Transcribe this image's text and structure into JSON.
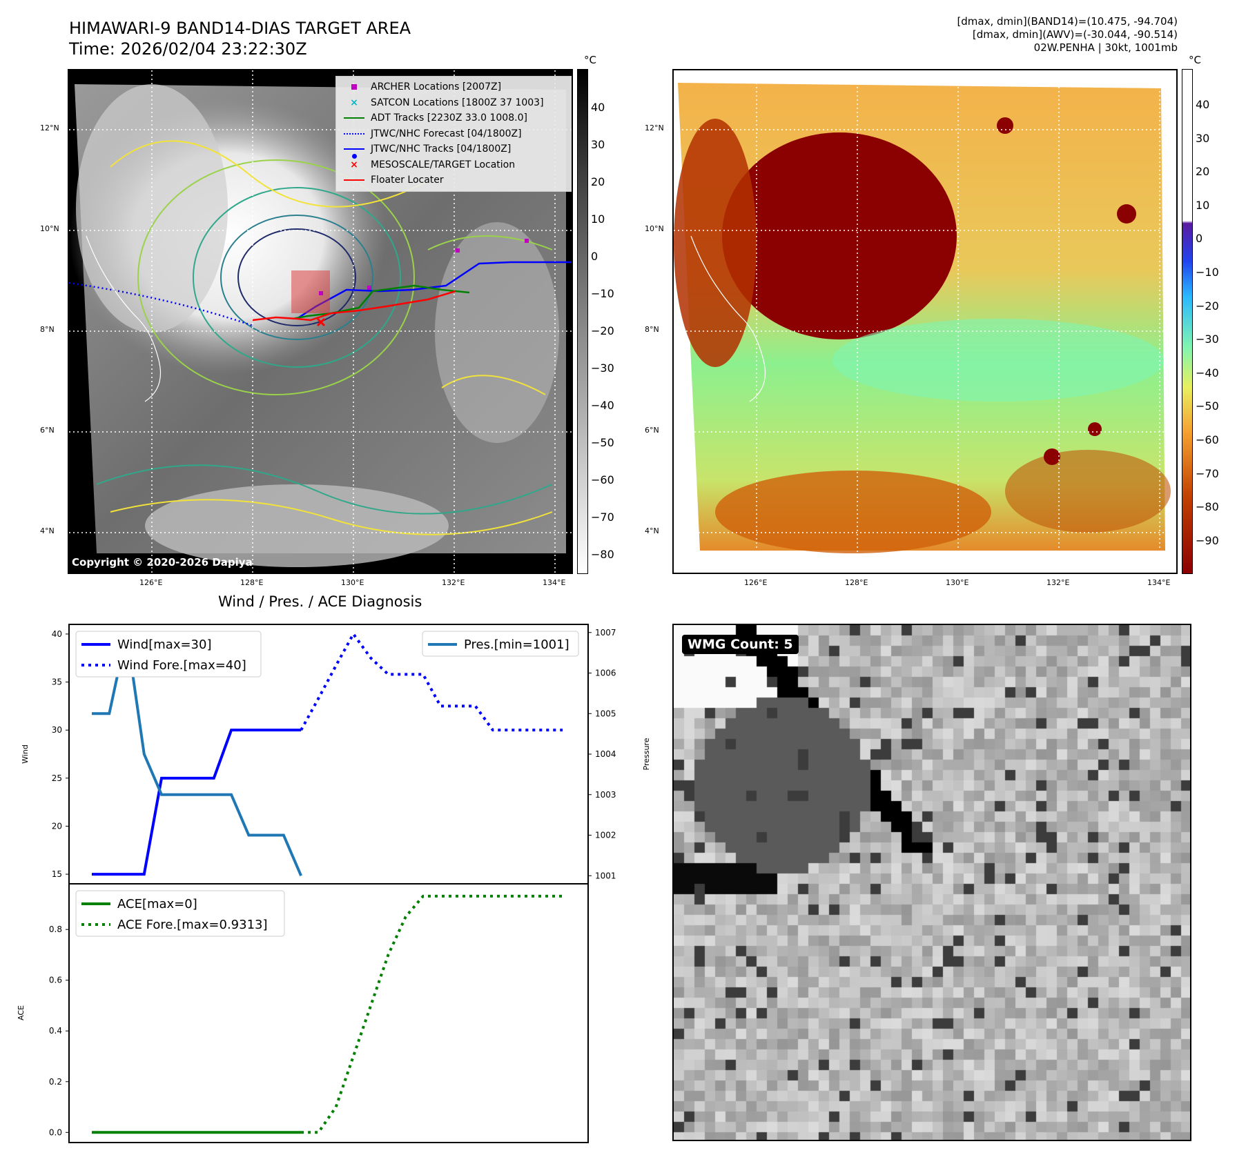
{
  "header": {
    "title_line1": "HIMAWARI-9 BAND14-DIAS TARGET AREA",
    "title_line2": "Time: 2026/02/04 23:22:30Z",
    "right_line1": "[dmax, dmin](BAND14)=(10.475, -94.704)",
    "right_line2": "[dmax, dmin](AWV)=(-30.044, -90.514)",
    "right_line3": "02W.PENHA | 30kt, 1001mb"
  },
  "map_left": {
    "copyright": "Copyright © 2020-2026 Dapiya",
    "colorbar_unit": "°C",
    "colorbar_ticks": [
      "40",
      "30",
      "20",
      "10",
      "0",
      "−10",
      "−20",
      "−30",
      "−40",
      "−50",
      "−60",
      "−70",
      "−80"
    ],
    "lat_labels": [
      "12°N",
      "10°N",
      "8°N",
      "6°N",
      "4°N"
    ],
    "lon_labels": [
      "126°E",
      "128°E",
      "130°E",
      "132°E",
      "134°E"
    ],
    "legend": [
      {
        "label": "ARCHER Locations [2007Z]",
        "color": "#c000c0",
        "marker": "square"
      },
      {
        "label": "SATCON Locations [1800Z 37 1003]",
        "color": "#00b8c8",
        "marker": "x"
      },
      {
        "label": "ADT Tracks [2230Z 33.0 1008.0]",
        "color": "#008000",
        "marker": "line"
      },
      {
        "label": "JTWC/NHC Forecast [04/1800Z]",
        "color": "#0000ff",
        "marker": "dotted"
      },
      {
        "label": "JTWC/NHC Tracks [04/1800Z]",
        "color": "#0000ff",
        "marker": "line-dot"
      },
      {
        "label": "MESOSCALE/TARGET Location",
        "color": "#ff0000",
        "marker": "x"
      },
      {
        "label": "Floater Locater",
        "color": "#ff0000",
        "marker": "line"
      }
    ]
  },
  "map_right": {
    "colorbar_unit": "°C",
    "colorbar_ticks": [
      "40",
      "30",
      "20",
      "10",
      "0",
      "−10",
      "−20",
      "−30",
      "−40",
      "−50",
      "−60",
      "−70",
      "−80",
      "−90"
    ],
    "lat_labels": [
      "12°N",
      "10°N",
      "8°N",
      "6°N",
      "4°N"
    ],
    "lon_labels": [
      "126°E",
      "128°E",
      "130°E",
      "132°E",
      "134°E"
    ]
  },
  "wmg": {
    "label": "WMG Count: 5"
  },
  "chart_data": [
    {
      "type": "line",
      "title": "Wind / Pres. / ACE Diagnosis",
      "ylabel": "Wind",
      "ylabel_right": "Pressure",
      "ylim": [
        14,
        41
      ],
      "ylim_right": [
        1000.8,
        1007.2
      ],
      "yticks": [
        15,
        20,
        25,
        30,
        35,
        40
      ],
      "yticks_right": [
        1001,
        1002,
        1003,
        1004,
        1005,
        1006,
        1007
      ],
      "x": [
        0,
        1,
        2,
        3,
        4,
        5,
        6,
        7,
        8,
        9,
        10,
        11,
        12,
        13,
        14,
        15,
        16,
        17,
        18,
        19,
        20,
        21,
        22,
        23,
        24,
        25,
        26,
        27
      ],
      "series": [
        {
          "name": "Wind[max=30]",
          "color": "#0000ff",
          "style": "solid",
          "axis": "left",
          "x": [
            0,
            1,
            2,
            3,
            4,
            5,
            6,
            7,
            8,
            9,
            10,
            11,
            12
          ],
          "values": [
            15,
            15,
            15,
            15,
            25,
            25,
            25,
            25,
            30,
            30,
            30,
            30,
            30
          ]
        },
        {
          "name": "Wind Fore.[max=40]",
          "color": "#0000ff",
          "style": "dotted",
          "axis": "left",
          "x": [
            12,
            13,
            14,
            15,
            16,
            17,
            18,
            19,
            20,
            21,
            22,
            23,
            24,
            25,
            26,
            27
          ],
          "values": [
            30,
            33.3,
            36.7,
            40,
            37.5,
            35.8,
            35.8,
            35.8,
            32.5,
            32.5,
            32.5,
            30,
            30,
            30,
            30,
            30
          ]
        },
        {
          "name": "Pres.[min=1001]",
          "color": "#1f77b4",
          "style": "solid",
          "axis": "right",
          "x": [
            0,
            1,
            2,
            3,
            4,
            5,
            6,
            7,
            8,
            9,
            10,
            11,
            12
          ],
          "values": [
            1005,
            1005,
            1007,
            1004,
            1003,
            1003,
            1003,
            1003,
            1003,
            1002,
            1002,
            1002,
            1001
          ]
        }
      ]
    },
    {
      "type": "line",
      "ylabel": "ACE",
      "ylim": [
        -0.04,
        0.98
      ],
      "yticks": [
        0.0,
        0.2,
        0.4,
        0.6,
        0.8
      ],
      "series": [
        {
          "name": "ACE[max=0]",
          "color": "#008000",
          "style": "solid",
          "x": [
            0,
            1,
            2,
            3,
            4,
            5,
            6,
            7,
            8,
            9,
            10,
            11,
            12
          ],
          "values": [
            0,
            0,
            0,
            0,
            0,
            0,
            0,
            0,
            0,
            0,
            0,
            0,
            0
          ]
        },
        {
          "name": "ACE Fore.[max=0.9313]",
          "color": "#008000",
          "style": "dotted",
          "x": [
            12,
            13,
            14,
            15,
            16,
            17,
            18,
            19,
            20,
            21,
            22,
            23,
            24,
            25,
            26,
            27
          ],
          "values": [
            0,
            0,
            0.1,
            0.3,
            0.5,
            0.7,
            0.85,
            0.9313,
            0.9313,
            0.9313,
            0.9313,
            0.9313,
            0.9313,
            0.9313,
            0.9313,
            0.9313
          ]
        }
      ]
    }
  ]
}
